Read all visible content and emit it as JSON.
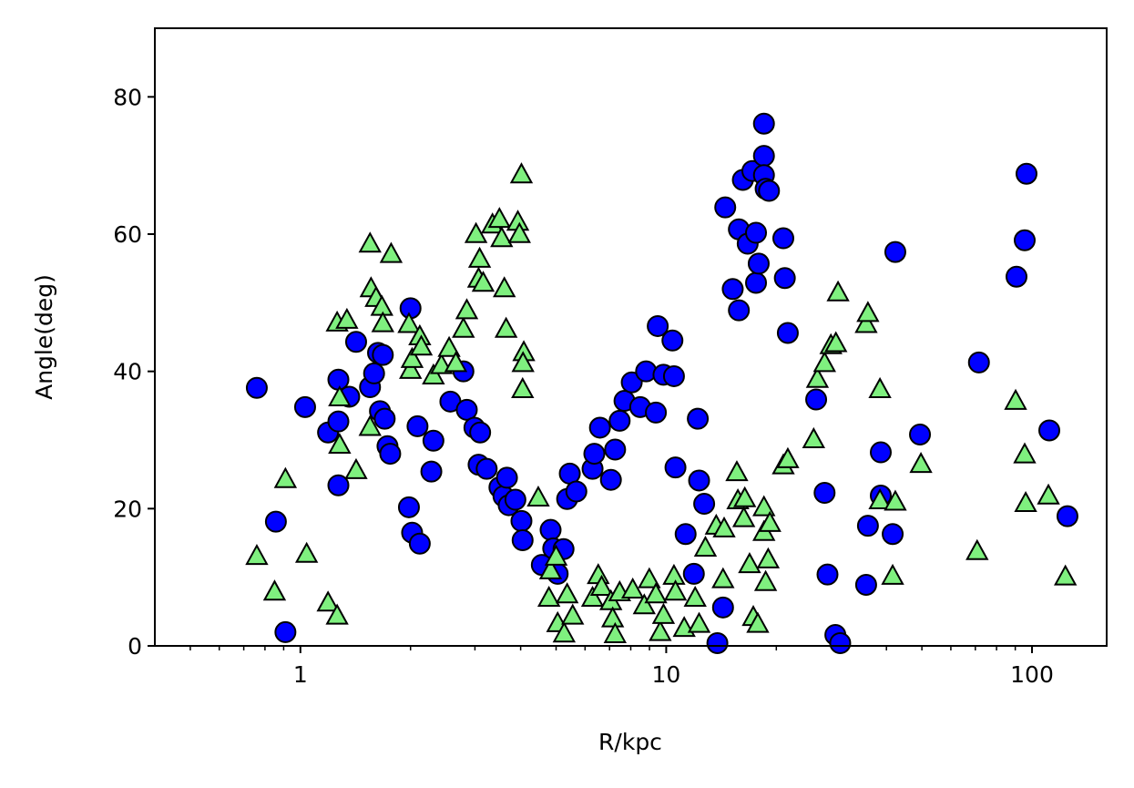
{
  "chart_data": {
    "type": "scatter",
    "x_label": "R/kpc",
    "y_label": "Angle(deg)",
    "xscale": "log",
    "xlim": [
      0.4,
      160
    ],
    "ylim": [
      0,
      90
    ],
    "xticks": [
      1,
      10,
      100
    ],
    "yticks": [
      0,
      20,
      40,
      60,
      80
    ],
    "series": [
      {
        "marker": "circle",
        "color": "#0000ff",
        "edgecolor": "#000000",
        "x": [
          0.76,
          0.857,
          0.91,
          1.03,
          1.19,
          1.27,
          1.27,
          1.27,
          1.36,
          1.42,
          1.55,
          1.59,
          1.63,
          1.68,
          1.65,
          1.7,
          1.73,
          1.76,
          2.0,
          1.98,
          2.02,
          2.09,
          2.12,
          2.31,
          2.28,
          2.57,
          2.79,
          2.85,
          2.99,
          3.1,
          3.07,
          3.23,
          3.5,
          3.59,
          3.67,
          3.71,
          3.87,
          4.02,
          4.05,
          4.57,
          4.83,
          4.91,
          5.05,
          5.24,
          5.36,
          5.45,
          5.68,
          6.29,
          6.36,
          6.59,
          7.06,
          7.25,
          7.46,
          7.69,
          8.05,
          8.49,
          8.81,
          9.37,
          9.48,
          9.83,
          10.4,
          10.5,
          10.6,
          11.3,
          11.9,
          12.2,
          12.3,
          12.7,
          13.8,
          14.3,
          14.5,
          15.2,
          15.8,
          15.8,
          16.2,
          16.7,
          17.2,
          17.6,
          17.6,
          17.9,
          18.5,
          18.5,
          18.5,
          18.7,
          19.1,
          20.9,
          21.1,
          21.5,
          25.7,
          27.1,
          27.6,
          29.0,
          29.9,
          35.2,
          35.6,
          38.6,
          38.6,
          41.6,
          42.3,
          49.4,
          71.6,
          90.7,
          95.5,
          96.6,
          111.5,
          125
        ],
        "values": [
          37.6,
          18.1,
          2.0,
          34.8,
          31.1,
          38.8,
          32.7,
          23.4,
          36.3,
          44.3,
          37.7,
          39.7,
          42.7,
          42.4,
          34.2,
          33.1,
          29.1,
          28.0,
          49.2,
          20.2,
          16.5,
          32.0,
          14.9,
          29.9,
          25.4,
          35.6,
          40.0,
          34.4,
          31.8,
          31.1,
          26.4,
          25.8,
          23.1,
          21.8,
          24.5,
          20.5,
          21.3,
          18.2,
          15.4,
          11.8,
          16.9,
          14.2,
          10.5,
          14.1,
          21.4,
          25.1,
          22.5,
          25.8,
          28.0,
          31.8,
          24.2,
          28.6,
          32.8,
          35.7,
          38.4,
          34.8,
          40.0,
          34.0,
          46.6,
          39.5,
          44.5,
          39.3,
          26.0,
          16.3,
          10.5,
          33.1,
          24.1,
          20.7,
          0.4,
          5.6,
          63.9,
          52.0,
          48.9,
          60.7,
          67.9,
          58.6,
          69.2,
          60.2,
          52.9,
          55.7,
          76.1,
          71.4,
          68.6,
          66.6,
          66.3,
          59.4,
          53.6,
          45.6,
          35.9,
          22.3,
          10.4,
          1.6,
          0.4,
          8.9,
          17.5,
          28.2,
          21.9,
          16.3,
          57.4,
          30.8,
          41.3,
          53.8,
          59.1,
          68.8,
          31.4,
          18.9
        ]
      },
      {
        "marker": "triangle",
        "color": "#7ff07f",
        "edgecolor": "#000000",
        "x": [
          0.76,
          0.85,
          0.91,
          1.04,
          1.19,
          1.26,
          1.26,
          1.34,
          1.28,
          1.28,
          1.42,
          1.55,
          1.56,
          1.61,
          1.67,
          1.68,
          1.77,
          1.55,
          1.98,
          2.0,
          2.02,
          2.12,
          2.14,
          2.31,
          2.43,
          2.55,
          2.66,
          2.79,
          2.85,
          3.02,
          3.09,
          3.07,
          3.16,
          3.35,
          3.5,
          3.55,
          3.61,
          3.65,
          3.93,
          3.97,
          4.02,
          4.08,
          4.06,
          4.05,
          4.47,
          4.78,
          4.83,
          5.0,
          5.05,
          5.26,
          5.36,
          5.55,
          6.29,
          6.52,
          6.66,
          7.06,
          7.14,
          7.25,
          7.46,
          8.1,
          8.71,
          8.99,
          9.37,
          9.63,
          9.83,
          10.5,
          10.6,
          11.2,
          12.0,
          12.3,
          12.8,
          13.7,
          14.3,
          14.4,
          15.6,
          15.7,
          16.3,
          16.4,
          16.9,
          17.3,
          17.8,
          18.5,
          18.5,
          18.7,
          19.0,
          19.2,
          20.9,
          21.5,
          25.3,
          25.9,
          27.1,
          28.2,
          29.1,
          29.5,
          35.2,
          35.6,
          38.4,
          38.4,
          41.6,
          42.3,
          49.7,
          70.8,
          90.2,
          95.5,
          96.1,
          110.9,
          123.4
        ],
        "values": [
          13.0,
          7.8,
          24.2,
          13.3,
          6.2,
          4.3,
          47.0,
          47.4,
          36.1,
          29.2,
          25.5,
          58.5,
          52.0,
          50.6,
          49.3,
          46.9,
          57.0,
          31.8,
          46.8,
          40.1,
          41.7,
          45.0,
          43.5,
          39.3,
          40.8,
          43.3,
          41.1,
          46.1,
          48.8,
          59.9,
          56.3,
          53.4,
          52.8,
          61.3,
          62.1,
          59.3,
          52.0,
          46.1,
          61.7,
          59.9,
          68.6,
          42.7,
          41.1,
          37.3,
          21.5,
          6.9,
          10.9,
          12.9,
          3.2,
          1.7,
          7.4,
          4.3,
          6.9,
          10.2,
          8.5,
          6.4,
          3.9,
          1.6,
          7.7,
          8.1,
          5.8,
          9.6,
          7.4,
          1.9,
          4.4,
          10.1,
          7.8,
          2.5,
          6.9,
          3.1,
          14.2,
          17.4,
          9.6,
          17.0,
          25.2,
          21.1,
          18.5,
          21.4,
          11.8,
          4.1,
          3.1,
          20.1,
          16.5,
          9.2,
          12.5,
          17.8,
          26.2,
          27.1,
          30.0,
          38.8,
          41.1,
          43.7,
          44.0,
          51.4,
          46.8,
          48.4,
          37.3,
          21.1,
          10.1,
          20.9,
          26.4,
          13.7,
          35.6,
          27.8,
          20.7,
          21.8,
          10.0
        ]
      }
    ]
  }
}
